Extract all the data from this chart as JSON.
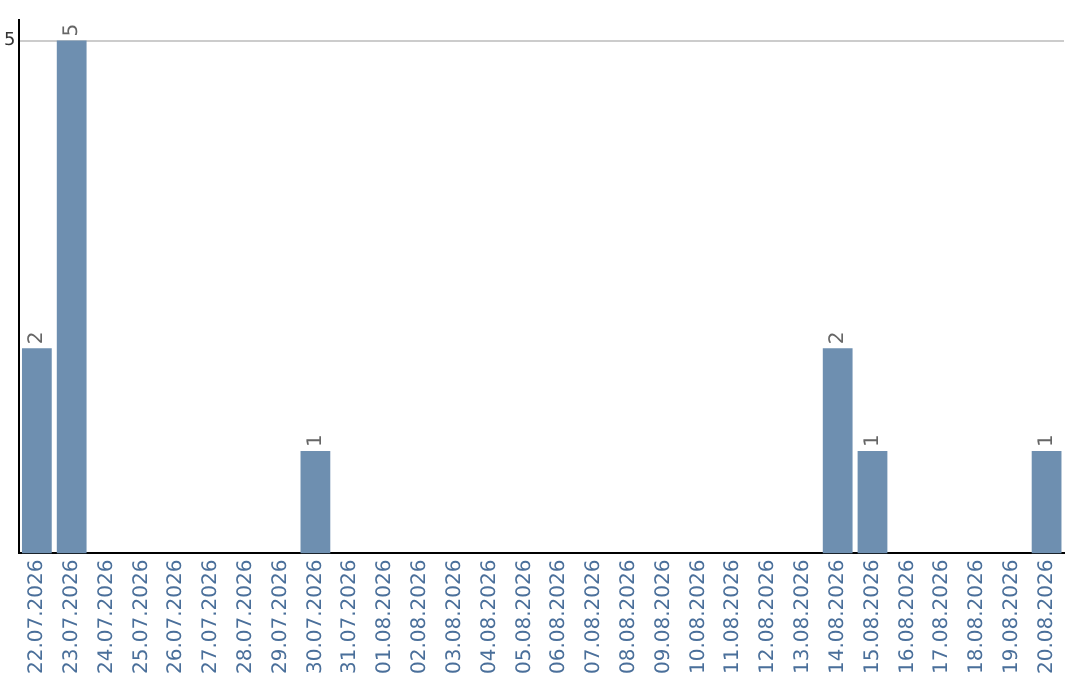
{
  "chart_data": {
    "type": "bar",
    "categories": [
      "22.07.2026",
      "23.07.2026",
      "24.07.2026",
      "25.07.2026",
      "26.07.2026",
      "27.07.2026",
      "28.07.2026",
      "29.07.2026",
      "30.07.2026",
      "31.07.2026",
      "01.08.2026",
      "02.08.2026",
      "03.08.2026",
      "04.08.2026",
      "05.08.2026",
      "06.08.2026",
      "07.08.2026",
      "08.08.2026",
      "09.08.2026",
      "10.08.2026",
      "11.08.2026",
      "12.08.2026",
      "13.08.2026",
      "14.08.2026",
      "15.08.2026",
      "16.08.2026",
      "17.08.2026",
      "18.08.2026",
      "19.08.2026",
      "20.08.2026"
    ],
    "values": [
      2,
      5,
      0,
      0,
      0,
      0,
      0,
      0,
      1,
      0,
      0,
      0,
      0,
      0,
      0,
      0,
      0,
      0,
      0,
      0,
      0,
      0,
      0,
      2,
      1,
      0,
      0,
      0,
      0,
      1
    ],
    "value_labels": [
      "2",
      "5",
      null,
      null,
      null,
      null,
      null,
      null,
      "1",
      null,
      null,
      null,
      null,
      null,
      null,
      null,
      null,
      null,
      null,
      null,
      null,
      null,
      null,
      "2",
      "1",
      null,
      null,
      null,
      null,
      "1"
    ],
    "color": "#6e8fb0",
    "ylim": [
      0,
      5.2
    ],
    "yticks": [
      5
    ],
    "grid": "y"
  }
}
